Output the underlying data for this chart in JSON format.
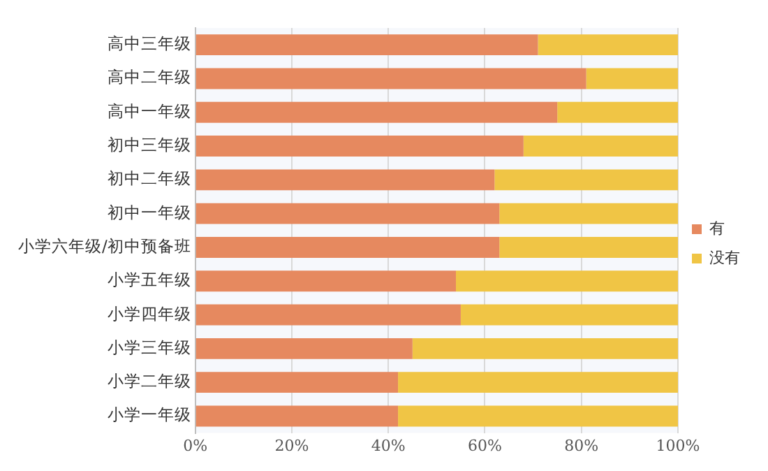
{
  "chart_data": {
    "type": "bar",
    "orientation": "horizontal",
    "stacked": true,
    "categories": [
      "高中三年级",
      "高中二年级",
      "高中一年级",
      "初中三年级",
      "初中二年级",
      "初中一年级",
      "小学六年级/初中预备班",
      "小学五年级",
      "小学四年级",
      "小学三年级",
      "小学二年级",
      "小学一年级"
    ],
    "series": [
      {
        "name": "有",
        "color": "#e6895f",
        "values": [
          71,
          81,
          75,
          68,
          62,
          63,
          63,
          54,
          55,
          45,
          42,
          42
        ]
      },
      {
        "name": "没有",
        "color": "#f0c545",
        "values": [
          29,
          19,
          25,
          32,
          38,
          37,
          37,
          46,
          45,
          55,
          58,
          58
        ]
      }
    ],
    "xlim": [
      0,
      100
    ],
    "xticks": [
      {
        "value": 0,
        "label": "0%"
      },
      {
        "value": 20,
        "label": "20%"
      },
      {
        "value": 40,
        "label": "40%"
      },
      {
        "value": 60,
        "label": "60%"
      },
      {
        "value": 80,
        "label": "80%"
      },
      {
        "value": 100,
        "label": "100%"
      }
    ],
    "grid": "x",
    "legend": "right"
  }
}
